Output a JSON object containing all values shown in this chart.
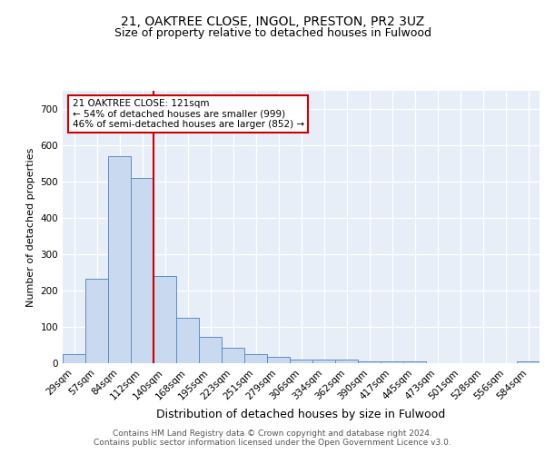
{
  "title1": "21, OAKTREE CLOSE, INGOL, PRESTON, PR2 3UZ",
  "title2": "Size of property relative to detached houses in Fulwood",
  "xlabel": "Distribution of detached houses by size in Fulwood",
  "ylabel": "Number of detached properties",
  "categories": [
    "29sqm",
    "57sqm",
    "84sqm",
    "112sqm",
    "140sqm",
    "168sqm",
    "195sqm",
    "223sqm",
    "251sqm",
    "279sqm",
    "306sqm",
    "334sqm",
    "362sqm",
    "390sqm",
    "417sqm",
    "445sqm",
    "473sqm",
    "501sqm",
    "528sqm",
    "556sqm",
    "584sqm"
  ],
  "values": [
    25,
    232,
    570,
    510,
    240,
    126,
    72,
    43,
    25,
    17,
    10,
    11,
    10,
    5,
    5,
    5,
    0,
    0,
    0,
    0,
    6
  ],
  "bar_color": "#c9d9ef",
  "bar_edge_color": "#5b8ec4",
  "vline_color": "#cc0000",
  "vline_x": 3.5,
  "annotation_text": "21 OAKTREE CLOSE: 121sqm\n← 54% of detached houses are smaller (999)\n46% of semi-detached houses are larger (852) →",
  "annotation_box_color": "#ffffff",
  "annotation_box_edge_color": "#cc0000",
  "ylim": [
    0,
    750
  ],
  "yticks": [
    0,
    100,
    200,
    300,
    400,
    500,
    600,
    700
  ],
  "background_color": "#e8eef8",
  "footer_line1": "Contains HM Land Registry data © Crown copyright and database right 2024.",
  "footer_line2": "Contains public sector information licensed under the Open Government Licence v3.0.",
  "title1_fontsize": 10,
  "title2_fontsize": 9,
  "xlabel_fontsize": 9,
  "ylabel_fontsize": 8,
  "tick_fontsize": 7.5,
  "annotation_fontsize": 7.5,
  "footer_fontsize": 6.5
}
